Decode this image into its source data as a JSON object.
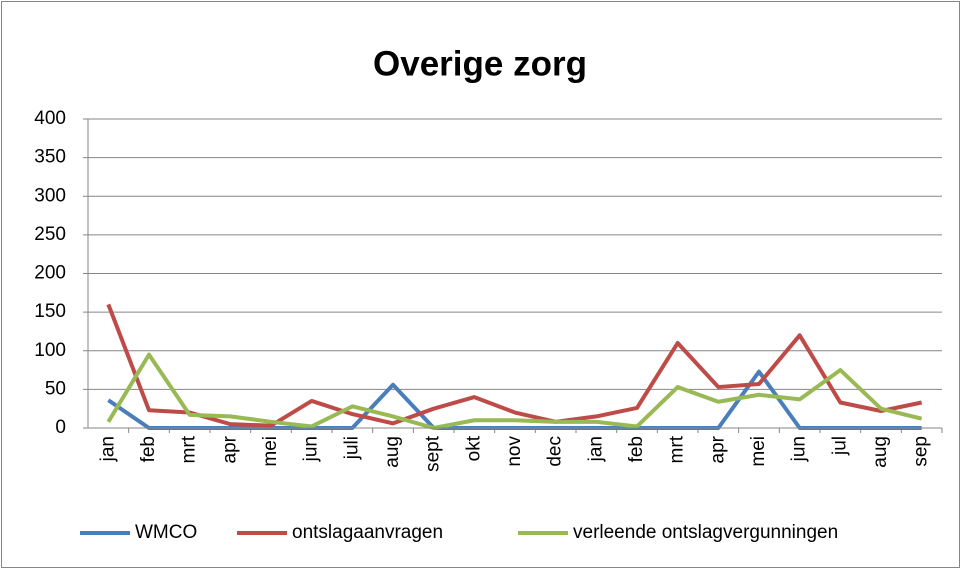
{
  "chart_data": {
    "type": "line",
    "title": "Overige zorg",
    "categories": [
      "jan",
      "feb",
      "mrt",
      "apr",
      "mei",
      "jun",
      "juli",
      "aug",
      "sept",
      "okt",
      "nov",
      "dec",
      "jan",
      "feb",
      "mrt",
      "apr",
      "mei",
      "jun",
      "jul",
      "aug",
      "sep"
    ],
    "series": [
      {
        "name": "WMCO",
        "color": "#4a7ebb",
        "values": [
          36,
          0,
          0,
          0,
          0,
          0,
          0,
          56,
          0,
          0,
          0,
          0,
          0,
          0,
          0,
          0,
          73,
          0,
          0,
          0,
          0
        ]
      },
      {
        "name": "ontslagaanvragen",
        "color": "#be4b48",
        "values": [
          160,
          23,
          20,
          5,
          3,
          35,
          18,
          6,
          25,
          40,
          20,
          8,
          15,
          26,
          110,
          53,
          57,
          120,
          33,
          22,
          33
        ]
      },
      {
        "name": "verleende ontslagvergunningen",
        "color": "#98b954",
        "values": [
          8,
          95,
          17,
          15,
          8,
          2,
          28,
          15,
          0,
          10,
          10,
          8,
          8,
          2,
          53,
          34,
          43,
          37,
          75,
          25,
          12
        ]
      }
    ],
    "ylim": [
      0,
      400
    ],
    "yticks": [
      0,
      50,
      100,
      150,
      200,
      250,
      300,
      350,
      400
    ],
    "grid": true,
    "legend": "bottom"
  }
}
